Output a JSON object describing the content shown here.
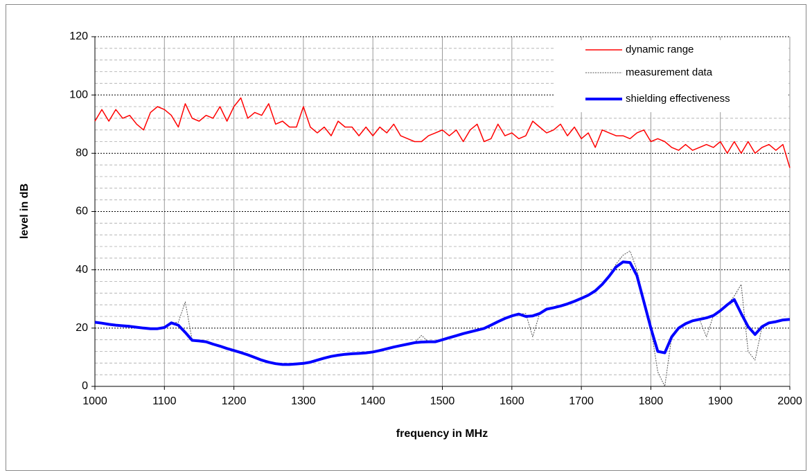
{
  "chart_data": {
    "type": "line",
    "xlabel": "frequency in MHz",
    "ylabel": "level in dB",
    "xlim": [
      1000,
      2000
    ],
    "ylim": [
      0,
      120
    ],
    "xticks": [
      1000,
      1100,
      1200,
      1300,
      1400,
      1500,
      1600,
      1700,
      1800,
      1900,
      2000
    ],
    "yticks": [
      0,
      20,
      40,
      60,
      80,
      100,
      120
    ],
    "yminorticks": [
      4,
      8,
      12,
      16,
      24,
      28,
      32,
      36,
      44,
      48,
      52,
      56,
      64,
      68,
      72,
      76,
      84,
      88,
      92,
      96,
      104,
      108,
      112,
      116
    ],
    "grid": true,
    "legend": "upper right",
    "x": [
      1000,
      1010,
      1020,
      1030,
      1040,
      1050,
      1060,
      1070,
      1080,
      1090,
      1100,
      1110,
      1120,
      1130,
      1140,
      1150,
      1160,
      1170,
      1180,
      1190,
      1200,
      1210,
      1220,
      1230,
      1240,
      1250,
      1260,
      1270,
      1280,
      1290,
      1300,
      1310,
      1320,
      1330,
      1340,
      1350,
      1360,
      1370,
      1380,
      1390,
      1400,
      1410,
      1420,
      1430,
      1440,
      1450,
      1460,
      1470,
      1480,
      1490,
      1500,
      1510,
      1520,
      1530,
      1540,
      1550,
      1560,
      1570,
      1580,
      1590,
      1600,
      1610,
      1620,
      1630,
      1640,
      1650,
      1660,
      1670,
      1680,
      1690,
      1700,
      1710,
      1720,
      1730,
      1740,
      1750,
      1760,
      1770,
      1780,
      1790,
      1800,
      1810,
      1820,
      1830,
      1840,
      1850,
      1860,
      1870,
      1880,
      1890,
      1900,
      1910,
      1920,
      1930,
      1940,
      1950,
      1960,
      1970,
      1980,
      1990,
      2000
    ],
    "series": [
      {
        "name": "dynamic range",
        "color": "#ff0000",
        "values": [
          91,
          95,
          91,
          95,
          92,
          93,
          90,
          88,
          94,
          96,
          95,
          93,
          89,
          97,
          92,
          91,
          93,
          92,
          96,
          91,
          96,
          99,
          92,
          94,
          93,
          97,
          90,
          91,
          89,
          89,
          96,
          89,
          87,
          89,
          86,
          91,
          89,
          89,
          86,
          89,
          86,
          89,
          87,
          90,
          86,
          85,
          84,
          84,
          86,
          87,
          88,
          86,
          88,
          84,
          88,
          90,
          84,
          85,
          90,
          86,
          87,
          85,
          86,
          91,
          89,
          87,
          88,
          90,
          86,
          89,
          85,
          87,
          82,
          88,
          87,
          86,
          86,
          85,
          87,
          88,
          84,
          85,
          84,
          82,
          81,
          83,
          81,
          82,
          83,
          82,
          84,
          80,
          84,
          80,
          84,
          80,
          82,
          83,
          81,
          83,
          75
        ]
      },
      {
        "name": "measurement data",
        "color": "#555555",
        "values": [
          22,
          21.7,
          21.3,
          21,
          20.8,
          20.6,
          20.3,
          20,
          19.8,
          19.8,
          20.2,
          21.8,
          22,
          29,
          15.8,
          15.6,
          15.3,
          14.5,
          13.8,
          13,
          12.3,
          11.6,
          10.8,
          9.9,
          9,
          8.3,
          7.8,
          7.5,
          7.5,
          7.7,
          7.9,
          8.3,
          9,
          9.7,
          10.3,
          10.7,
          11,
          11.2,
          11.3,
          11.5,
          11.8,
          12.3,
          12.9,
          13.5,
          14,
          14.5,
          15,
          17.5,
          15.3,
          15.3,
          16,
          16.7,
          17.4,
          18.1,
          18.7,
          19.3,
          19.9,
          21,
          22.2,
          23.3,
          24.2,
          24.8,
          25,
          17,
          25,
          26.5,
          27,
          27.6,
          28.3,
          29.2,
          30.2,
          31.3,
          32.8,
          35,
          37.8,
          42,
          45,
          46.5,
          40,
          29,
          20,
          5,
          0,
          17,
          20,
          21.5,
          22.5,
          23,
          17,
          24.3,
          26,
          28,
          31,
          35,
          12,
          9,
          20.5,
          21.8,
          22.2,
          22.8,
          23
        ]
      },
      {
        "name": "shielding effectiveness",
        "color": "#0000ff",
        "values": [
          22,
          21.7,
          21.3,
          21,
          20.8,
          20.6,
          20.3,
          20,
          19.8,
          19.8,
          20.2,
          21.8,
          21,
          18.5,
          15.8,
          15.6,
          15.3,
          14.5,
          13.8,
          13,
          12.3,
          11.6,
          10.8,
          9.9,
          9,
          8.3,
          7.8,
          7.5,
          7.5,
          7.7,
          7.9,
          8.3,
          9,
          9.7,
          10.3,
          10.7,
          11,
          11.2,
          11.3,
          11.5,
          11.8,
          12.3,
          12.9,
          13.5,
          14,
          14.5,
          15,
          15.2,
          15.3,
          15.3,
          16,
          16.7,
          17.4,
          18.1,
          18.7,
          19.3,
          19.9,
          21,
          22.2,
          23.3,
          24.2,
          24.8,
          24,
          24.2,
          25,
          26.5,
          27,
          27.6,
          28.3,
          29.2,
          30.2,
          31.3,
          32.8,
          35,
          37.8,
          41,
          42.7,
          42.5,
          38,
          29,
          20,
          12,
          11.5,
          17,
          20,
          21.5,
          22.5,
          23,
          23.5,
          24.3,
          26,
          28,
          29.8,
          25,
          20.5,
          17.8,
          20.5,
          21.8,
          22.2,
          22.8,
          23
        ]
      }
    ]
  }
}
